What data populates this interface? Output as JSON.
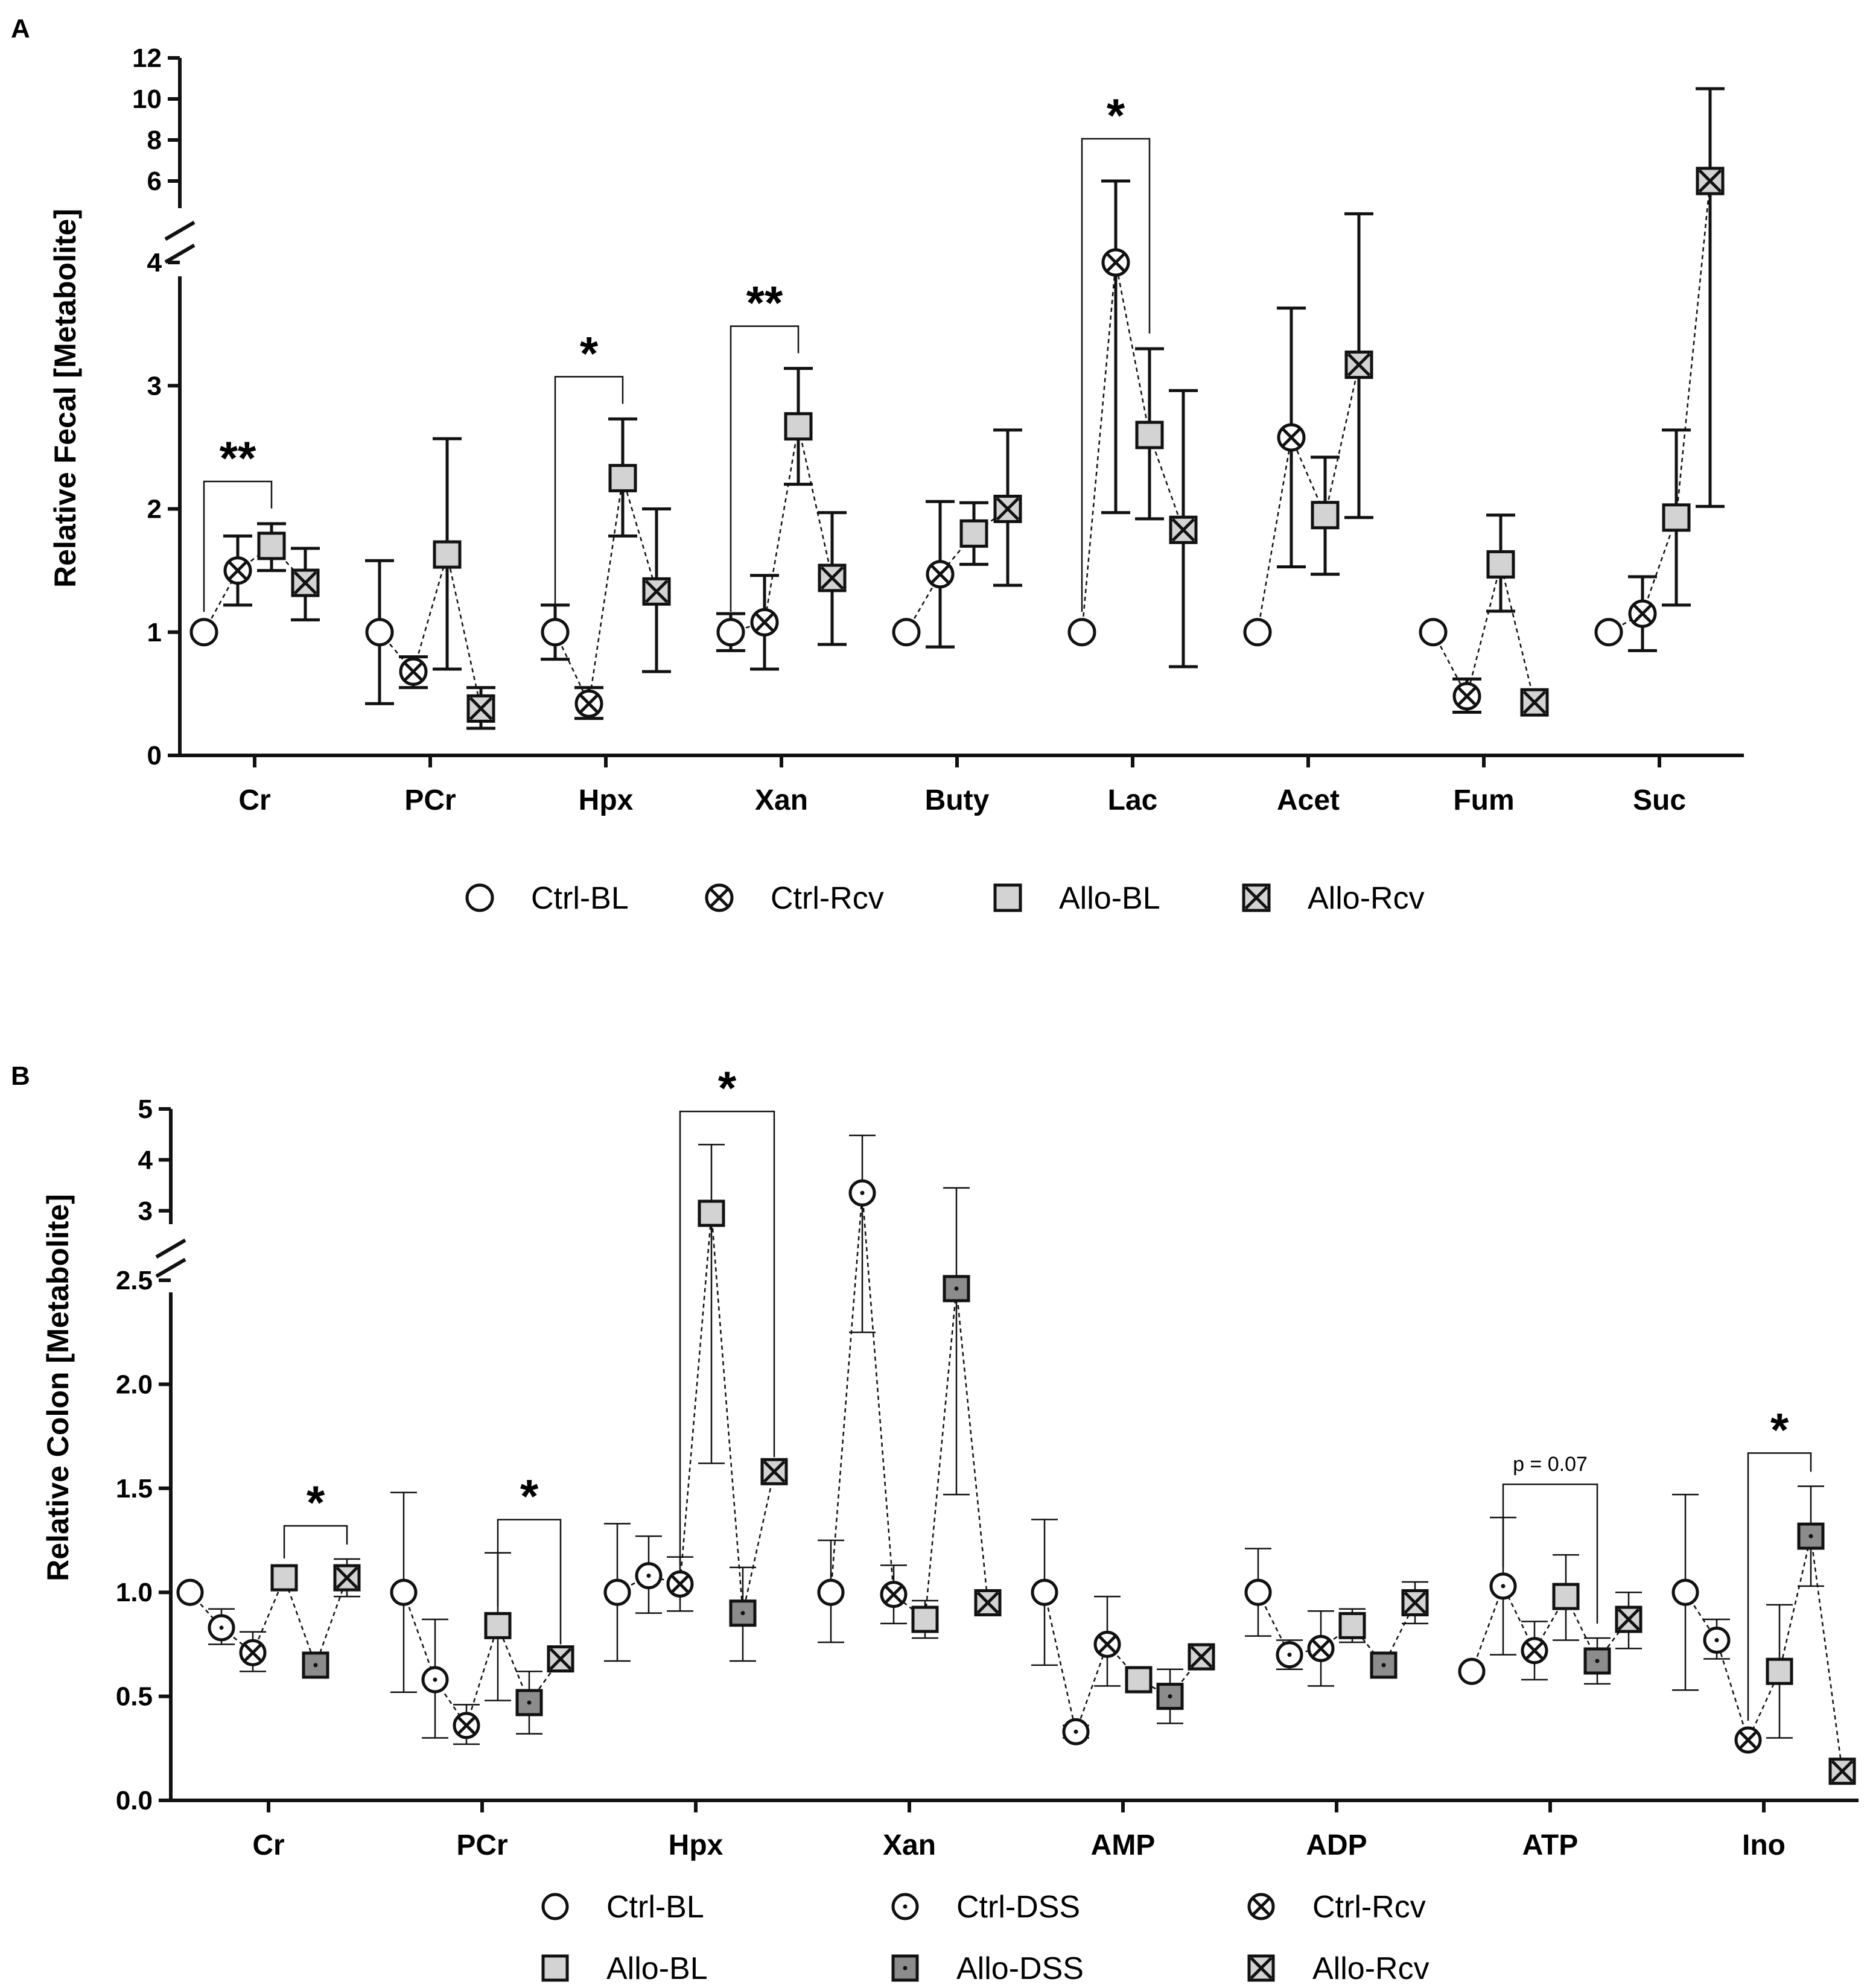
{
  "colors": {
    "ink": "#111111",
    "light_fill": "#d3d3d3",
    "dark_fill": "#8c8c8c",
    "open_fill": "#ffffff"
  },
  "chart_data": [
    {
      "panel": "A",
      "type": "scatter",
      "ylabel": "Relative Fecal [Metabolite]",
      "categories": [
        "Cr",
        "PCr",
        "Hpx",
        "Xan",
        "Buty",
        "Lac",
        "Acet",
        "Fum",
        "Suc"
      ],
      "y_ticks_lower": [
        0,
        1,
        2,
        3,
        4
      ],
      "y_ticks_upper": [
        4,
        6,
        8,
        10,
        12
      ],
      "ylim_lower": [
        0,
        4
      ],
      "ylim_upper": [
        4,
        12
      ],
      "series": [
        {
          "name": "Ctrl-BL",
          "marker": "circle",
          "values": [
            1,
            1,
            1,
            1,
            1,
            1,
            1,
            1,
            1
          ],
          "err": [
            [
              1,
              1
            ],
            [
              0.42,
              1.58
            ],
            [
              0.78,
              1.22
            ],
            [
              0.85,
              1.15
            ],
            [
              1,
              1
            ],
            [
              1,
              1
            ],
            [
              1,
              1
            ],
            [
              1,
              1
            ],
            [
              1,
              1
            ]
          ]
        },
        {
          "name": "Ctrl-Rcv",
          "marker": "circle-x",
          "values": [
            1.5,
            0.68,
            0.42,
            1.08,
            1.47,
            4.0,
            2.58,
            0.48,
            1.15
          ],
          "err": [
            [
              1.22,
              1.78
            ],
            [
              0.55,
              0.8
            ],
            [
              0.3,
              0.55
            ],
            [
              0.7,
              1.46
            ],
            [
              0.88,
              2.06
            ],
            [
              1.97,
              6.0
            ],
            [
              1.53,
              3.63
            ],
            [
              0.35,
              0.62
            ],
            [
              0.85,
              1.45
            ]
          ]
        },
        {
          "name": "Allo-BL",
          "marker": "square",
          "values": [
            1.7,
            1.63,
            2.25,
            2.67,
            1.8,
            2.6,
            1.95,
            1.55,
            1.93
          ],
          "err": [
            [
              1.5,
              1.88
            ],
            [
              0.7,
              2.57
            ],
            [
              1.78,
              2.73
            ],
            [
              2.2,
              3.14
            ],
            [
              1.55,
              2.05
            ],
            [
              1.92,
              3.3
            ],
            [
              1.47,
              2.42
            ],
            [
              1.17,
              1.95
            ],
            [
              1.22,
              2.64
            ]
          ]
        },
        {
          "name": "Allo-Rcv",
          "marker": "square-x",
          "values": [
            1.4,
            0.38,
            1.33,
            1.44,
            2.0,
            1.83,
            3.17,
            0.43,
            6.0
          ],
          "err": [
            [
              1.1,
              1.68
            ],
            [
              0.22,
              0.55
            ],
            [
              0.68,
              2.0
            ],
            [
              0.9,
              1.97
            ],
            [
              1.38,
              2.64
            ],
            [
              0.72,
              2.96
            ],
            [
              1.93,
              4.4
            ],
            [
              0.43,
              0.43
            ],
            [
              2.02,
              10.5
            ]
          ]
        }
      ],
      "significance": [
        {
          "category_from": "Cr",
          "series_from": "Ctrl-BL",
          "series_to": "Allo-BL",
          "label": "**"
        },
        {
          "category_from": "Hpx",
          "series_from": "Ctrl-BL",
          "series_to": "Allo-BL",
          "label": "*"
        },
        {
          "category_from": "Xan",
          "series_from": "Ctrl-BL",
          "series_to": "Allo-BL",
          "label": "**"
        },
        {
          "category_from": "Lac",
          "series_from": "Ctrl-BL",
          "series_to": "Allo-BL",
          "label": "*"
        }
      ]
    },
    {
      "panel": "B",
      "type": "scatter",
      "ylabel": "Relative Colon [Metabolite]",
      "categories": [
        "Cr",
        "PCr",
        "Hpx",
        "Xan",
        "AMP",
        "ADP",
        "ATP",
        "Ino"
      ],
      "y_ticks_lower": [
        "0.0",
        "0.5",
        "1.0",
        "1.5",
        "2.0",
        "2.5"
      ],
      "y_ticks_upper": [
        "3",
        "4",
        "5"
      ],
      "ylim_lower": [
        0,
        2.5
      ],
      "ylim_upper": [
        2.5,
        5
      ],
      "series": [
        {
          "name": "Ctrl-BL",
          "marker": "circle",
          "values": [
            1,
            1,
            1,
            1,
            1,
            1,
            0.62,
            1
          ],
          "err": [
            [
              1,
              1
            ],
            [
              0.52,
              1.48
            ],
            [
              0.67,
              1.33
            ],
            [
              0.76,
              1.25
            ],
            [
              0.65,
              1.35
            ],
            [
              0.79,
              1.21
            ],
            [
              0.62,
              0.62
            ],
            [
              0.53,
              1.47
            ]
          ]
        },
        {
          "name": "Ctrl-DSS",
          "marker": "circle-dot",
          "values": [
            0.83,
            0.58,
            1.08,
            3.35,
            0.33,
            0.7,
            1.03,
            0.77
          ],
          "err": [
            [
              0.75,
              0.92
            ],
            [
              0.3,
              0.87
            ],
            [
              0.9,
              1.27
            ],
            [
              2.25,
              4.48
            ],
            [
              0.3,
              0.36
            ],
            [
              0.63,
              0.77
            ],
            [
              0.7,
              1.36
            ],
            [
              0.68,
              0.87
            ]
          ]
        },
        {
          "name": "Ctrl-Rcv",
          "marker": "circle-x",
          "values": [
            0.71,
            0.36,
            1.04,
            0.99,
            0.75,
            0.73,
            0.72,
            0.29
          ],
          "err": [
            [
              0.62,
              0.81
            ],
            [
              0.27,
              0.46
            ],
            [
              0.91,
              1.17
            ],
            [
              0.85,
              1.13
            ],
            [
              0.55,
              0.98
            ],
            [
              0.55,
              0.91
            ],
            [
              0.58,
              0.86
            ],
            [
              0.29,
              0.29
            ]
          ]
        },
        {
          "name": "Allo-BL",
          "marker": "square",
          "values": [
            1.07,
            0.84,
            2.95,
            0.87,
            0.58,
            0.84,
            0.98,
            0.62
          ],
          "err": [
            [
              1.07,
              1.07
            ],
            [
              0.48,
              1.19
            ],
            [
              1.62,
              4.3
            ],
            [
              0.78,
              0.96
            ],
            [
              0.58,
              0.58
            ],
            [
              0.76,
              0.92
            ],
            [
              0.77,
              1.18
            ],
            [
              0.3,
              0.94
            ]
          ]
        },
        {
          "name": "Allo-DSS",
          "marker": "square-dot",
          "values": [
            0.65,
            0.47,
            0.9,
            2.46,
            0.5,
            0.65,
            0.67,
            1.27
          ],
          "err": [
            [
              0.65,
              0.65
            ],
            [
              0.32,
              0.62
            ],
            [
              0.67,
              1.12
            ],
            [
              1.47,
              3.45
            ],
            [
              0.37,
              0.63
            ],
            [
              0.65,
              0.65
            ],
            [
              0.56,
              0.78
            ],
            [
              1.03,
              1.51
            ]
          ]
        },
        {
          "name": "Allo-Rcv",
          "marker": "square-x",
          "values": [
            1.07,
            0.68,
            1.58,
            0.95,
            0.69,
            0.95,
            0.87,
            0.14
          ],
          "err": [
            [
              0.98,
              1.16
            ],
            [
              0.68,
              0.68
            ],
            [
              1.58,
              1.58
            ],
            [
              0.95,
              0.95
            ],
            [
              0.69,
              0.69
            ],
            [
              0.85,
              1.05
            ],
            [
              0.73,
              1.0
            ],
            [
              0.14,
              0.14
            ]
          ]
        }
      ],
      "significance": [
        {
          "category_from": "Cr",
          "series_from": "Allo-BL",
          "category_to": "Cr",
          "series_to": "Allo-Rcv",
          "label": "*"
        },
        {
          "category_from": "PCr",
          "series_from": "Allo-BL",
          "category_to": "PCr",
          "series_to": "Allo-Rcv",
          "label": "*"
        },
        {
          "category_from": "Hpx",
          "series_from": "Ctrl-Rcv",
          "category_to": "Hpx",
          "series_to": "Allo-Rcv",
          "label": "*"
        },
        {
          "category_from": "ATP",
          "series_from": "Ctrl-DSS",
          "category_to": "ATP",
          "series_to": "Allo-DSS",
          "label": "p = 0.07"
        },
        {
          "category_from": "Ino",
          "series_from": "Ctrl-Rcv",
          "category_to": "Ino",
          "series_to": "Allo-DSS",
          "label": "*"
        }
      ]
    }
  ]
}
